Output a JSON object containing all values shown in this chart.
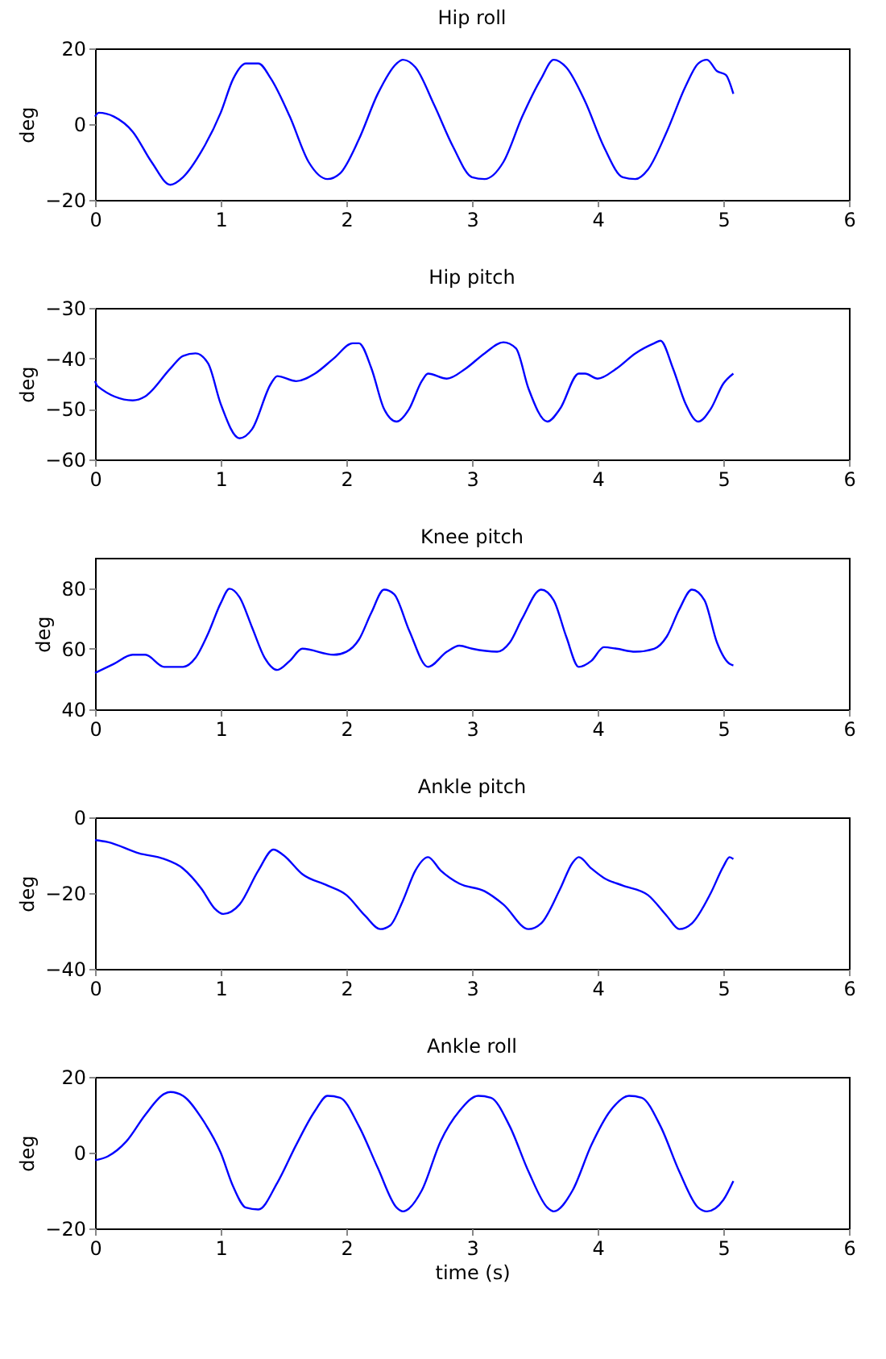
{
  "chart_data": [
    {
      "type": "line",
      "title": "Hip roll",
      "ylabel": "deg",
      "xlim": [
        0,
        6
      ],
      "xticks": [
        0,
        1,
        2,
        3,
        4,
        5,
        6
      ],
      "ylim": [
        -20,
        20
      ],
      "yticks": [
        -20,
        0,
        20
      ],
      "grid": false,
      "line_style": "solid",
      "x": [
        0,
        0.03,
        0.15,
        0.3,
        0.45,
        0.6,
        0.7,
        0.85,
        1.0,
        1.1,
        1.2,
        1.3,
        1.4,
        1.55,
        1.7,
        1.85,
        1.95,
        2.1,
        2.25,
        2.4,
        2.45,
        2.55,
        2.7,
        2.85,
        3.0,
        3.1,
        3.25,
        3.4,
        3.55,
        3.65,
        3.75,
        3.9,
        4.05,
        4.2,
        4.3,
        4.4,
        4.55,
        4.7,
        4.8,
        4.87,
        4.95,
        5.02,
        5.08
      ],
      "series": [
        {
          "color": "#0000ff",
          "values": [
            2,
            3,
            2,
            -2,
            -10,
            -16,
            -14,
            -7,
            3,
            12,
            16,
            16,
            12,
            2,
            -10,
            -14.5,
            -13,
            -4,
            8,
            16,
            17,
            15,
            5,
            -6,
            -14,
            -14.5,
            -10,
            2,
            12,
            17,
            15,
            6,
            -6,
            -14,
            -14.5,
            -12,
            -2,
            10,
            16,
            17,
            14,
            13,
            8
          ]
        }
      ]
    },
    {
      "type": "line",
      "title": "Hip pitch",
      "ylabel": "deg",
      "xlim": [
        0,
        6
      ],
      "xticks": [
        0,
        1,
        2,
        3,
        4,
        5,
        6
      ],
      "ylim": [
        -60,
        -30
      ],
      "yticks": [
        -60,
        -50,
        -40,
        -30
      ],
      "grid": false,
      "line_style": "solid",
      "x": [
        0,
        0.02,
        0.3,
        0.4,
        0.6,
        0.7,
        0.8,
        0.9,
        1.0,
        1.15,
        1.25,
        1.4,
        1.45,
        1.6,
        1.75,
        1.9,
        2.05,
        2.1,
        2.2,
        2.3,
        2.4,
        2.5,
        2.6,
        2.65,
        2.8,
        2.95,
        3.1,
        3.25,
        3.35,
        3.45,
        3.6,
        3.7,
        3.85,
        3.9,
        4.0,
        4.15,
        4.3,
        4.45,
        4.5,
        4.6,
        4.7,
        4.8,
        4.9,
        5.0,
        5.08
      ],
      "series": [
        {
          "color": "#0000ff",
          "values": [
            -44.5,
            -45.5,
            -48.3,
            -47.5,
            -42,
            -39.5,
            -39,
            -41,
            -49,
            -55.8,
            -54,
            -45,
            -43.5,
            -44.5,
            -43,
            -40,
            -37,
            -37,
            -42,
            -50,
            -52.5,
            -50,
            -44.5,
            -43,
            -44,
            -42,
            -39,
            -36.8,
            -38,
            -46,
            -52.5,
            -50,
            -43,
            -43,
            -44,
            -42,
            -39,
            -37,
            -36.5,
            -42,
            -49,
            -52.5,
            -50,
            -45,
            -43
          ]
        }
      ]
    },
    {
      "type": "line",
      "title": "Knee pitch",
      "ylabel": "deg",
      "xlim": [
        0,
        6
      ],
      "xticks": [
        0,
        1,
        2,
        3,
        4,
        5,
        6
      ],
      "ylim": [
        40,
        90
      ],
      "yticks": [
        40,
        60,
        80
      ],
      "grid": false,
      "line_style": "solid",
      "x": [
        0,
        0.15,
        0.3,
        0.4,
        0.55,
        0.7,
        0.8,
        0.9,
        1.0,
        1.07,
        1.15,
        1.25,
        1.35,
        1.45,
        1.55,
        1.65,
        1.9,
        2.0,
        2.1,
        2.2,
        2.3,
        2.38,
        2.5,
        2.65,
        2.8,
        2.9,
        3.0,
        3.2,
        3.3,
        3.4,
        3.55,
        3.65,
        3.75,
        3.85,
        3.95,
        4.05,
        4.15,
        4.3,
        4.45,
        4.55,
        4.65,
        4.75,
        4.85,
        4.95,
        5.05,
        5.08
      ],
      "series": [
        {
          "color": "#0000ff",
          "values": [
            52,
            55,
            58,
            58,
            54,
            54,
            57,
            65,
            75,
            79.8,
            77,
            67,
            57,
            53,
            56,
            60,
            58,
            59,
            63,
            72,
            79.5,
            78,
            66,
            54,
            59,
            61,
            60,
            59,
            62,
            70,
            79.5,
            76,
            64,
            54,
            56,
            60.5,
            60,
            59,
            60,
            64,
            73,
            79.5,
            76,
            62,
            55,
            54.5
          ]
        }
      ]
    },
    {
      "type": "line",
      "title": "Ankle pitch",
      "ylabel": "deg",
      "xlim": [
        0,
        6
      ],
      "xticks": [
        0,
        1,
        2,
        3,
        4,
        5,
        6
      ],
      "ylim": [
        -40,
        0
      ],
      "yticks": [
        -40,
        -20,
        0
      ],
      "grid": false,
      "line_style": "solid",
      "x": [
        0,
        0.1,
        0.35,
        0.55,
        0.7,
        0.85,
        0.95,
        1.02,
        1.15,
        1.3,
        1.42,
        1.5,
        1.65,
        1.85,
        2.0,
        2.15,
        2.27,
        2.35,
        2.45,
        2.55,
        2.65,
        2.75,
        2.9,
        3.1,
        3.25,
        3.45,
        3.55,
        3.7,
        3.8,
        3.85,
        3.95,
        4.05,
        4.2,
        4.4,
        4.55,
        4.65,
        4.75,
        4.9,
        5.0,
        5.05,
        5.08
      ],
      "series": [
        {
          "color": "#0000ff",
          "values": [
            -6,
            -6.5,
            -9.5,
            -11,
            -13.5,
            -19,
            -24,
            -25.5,
            -23,
            -14,
            -8.5,
            -10,
            -15,
            -18,
            -20.5,
            -26,
            -29.5,
            -28.5,
            -22,
            -14,
            -10.5,
            -14,
            -17.5,
            -19.5,
            -23,
            -29.5,
            -28,
            -19,
            -12,
            -10.5,
            -13.5,
            -16,
            -18,
            -20.5,
            -26,
            -29.5,
            -28,
            -20,
            -13,
            -10.5,
            -11
          ]
        }
      ]
    },
    {
      "type": "line",
      "title": "Ankle roll",
      "ylabel": "deg",
      "xlabel": "time (s)",
      "xlim": [
        0,
        6
      ],
      "xticks": [
        0,
        1,
        2,
        3,
        4,
        5,
        6
      ],
      "ylim": [
        -20,
        20
      ],
      "yticks": [
        -20,
        0,
        20
      ],
      "grid": false,
      "line_style": "solid",
      "x": [
        0,
        0.1,
        0.25,
        0.4,
        0.55,
        0.6,
        0.7,
        0.85,
        1.0,
        1.1,
        1.2,
        1.3,
        1.45,
        1.6,
        1.75,
        1.85,
        1.95,
        2.1,
        2.25,
        2.4,
        2.45,
        2.6,
        2.75,
        2.9,
        3.05,
        3.15,
        3.3,
        3.45,
        3.6,
        3.65,
        3.8,
        3.95,
        4.1,
        4.25,
        4.35,
        4.5,
        4.65,
        4.8,
        4.87,
        5.0,
        5.08
      ],
      "series": [
        {
          "color": "#0000ff",
          "values": [
            -2,
            -1,
            3,
            10,
            15.5,
            16,
            15,
            9,
            0,
            -9,
            -14.5,
            -15,
            -8,
            2,
            11,
            15,
            14.5,
            7,
            -4,
            -14.5,
            -15.5,
            -10,
            3,
            11,
            15,
            14.5,
            7,
            -5,
            -14.5,
            -15.5,
            -10,
            2,
            11,
            15,
            14.5,
            7,
            -5,
            -14.5,
            -15.5,
            -12.5,
            -7.5
          ]
        }
      ]
    }
  ]
}
